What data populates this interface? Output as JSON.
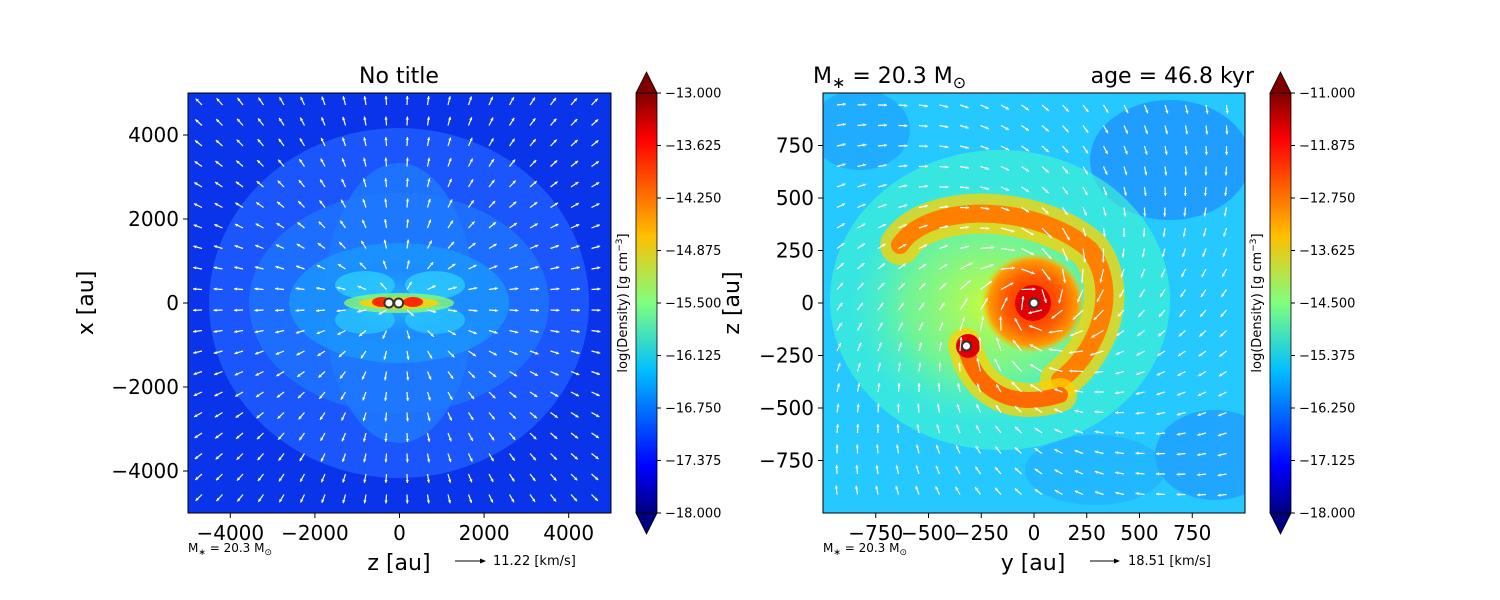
{
  "chart_data": [
    {
      "type": "heatmap",
      "title": "No title",
      "xlabel": "z [au]",
      "ylabel": "x [au]",
      "xlim": [
        -5000,
        5000
      ],
      "ylim": [
        -5000,
        5000
      ],
      "xticks": [
        -4000,
        -2000,
        0,
        2000,
        4000
      ],
      "yticks": [
        -4000,
        -2000,
        0,
        2000,
        4000
      ],
      "colorbar": {
        "label": "log(Density) [g cm$^{-3}$]",
        "label_text": "log(Density) [g cm",
        "label_sup": "−3",
        "label_end": "]",
        "range": [
          -18.0,
          -13.0
        ],
        "ticks": [
          "−13.000",
          "−13.625",
          "−14.250",
          "−14.875",
          "−15.500",
          "−16.125",
          "−16.750",
          "−17.375",
          "−18.000"
        ],
        "colormap": "jet"
      },
      "stars": [
        {
          "x": -250,
          "y": 0
        },
        {
          "x": -20,
          "y": 0
        }
      ],
      "mass_note": "M* = 20.3 M☉",
      "mass_note_parts": {
        "a": "M",
        "star": "∗",
        "b": " = 20.3 M",
        "sun": "⊙"
      },
      "velocity_key": "11.22 [km/s]",
      "vector_field": "radial outflow (white arrows)"
    },
    {
      "type": "heatmap",
      "title_left": "M∗ = 20.3 M⊙",
      "title_left_parts": {
        "a": "M",
        "star": "∗",
        "b": " = 20.3 M",
        "sun": "⊙"
      },
      "title_right": "age = 46.8 kyr",
      "xlabel": "y [au]",
      "ylabel": "z [au]",
      "xlim": [
        -1000,
        1000
      ],
      "ylim": [
        -1000,
        1000
      ],
      "xticks": [
        -750,
        -500,
        -250,
        0,
        250,
        500,
        750
      ],
      "yticks": [
        -750,
        -500,
        -250,
        0,
        250,
        500,
        750
      ],
      "colorbar": {
        "label": "log(Density) [g cm$^{-3}$]",
        "label_text": "log(Density) [g cm",
        "label_sup": "−3",
        "label_end": "]",
        "range": [
          -18.0,
          -11.0
        ],
        "ticks": [
          "−11.000",
          "−11.875",
          "−12.750",
          "−13.625",
          "−14.500",
          "−15.375",
          "−16.250",
          "−17.125",
          "−18.000"
        ],
        "colormap": "jet"
      },
      "stars": [
        {
          "x": 0,
          "y": 0
        },
        {
          "x": -320,
          "y": -205
        }
      ],
      "mass_note": "M* = 20.3 M☉",
      "mass_note_parts": {
        "a": "M",
        "star": "∗",
        "b": " = 20.3 M",
        "sun": "⊙"
      },
      "velocity_key": "18.51 [km/s]",
      "vector_field": "swirling inflow (white arrows)"
    }
  ]
}
